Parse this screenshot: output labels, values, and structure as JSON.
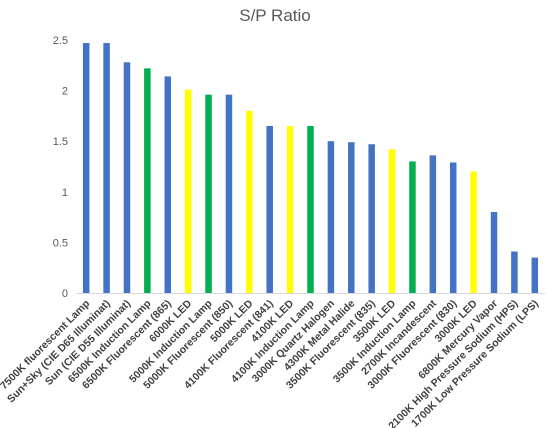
{
  "chart_data": {
    "type": "bar",
    "title": "S/P Ratio",
    "xlabel": "",
    "ylabel": "",
    "ylim": [
      0,
      2.5
    ],
    "yticks": [
      "0",
      "0.5",
      "1",
      "1.5",
      "2",
      "2.5"
    ],
    "grid": false,
    "legend": "none",
    "colors": {
      "blue": "#4472c4",
      "green": "#00b050",
      "yellow": "#ffff00"
    },
    "categories": [
      "7500K fluorescent Lamp",
      "Sun+Sky (CIE D65 Illuminat)",
      "Sun (CIE D55 Illuminat)",
      "6500K Induction Lamp",
      "6500K Fluorescent (865)",
      "6000K LED",
      "5000K Induction Lamp",
      "5000K Fluorescent (850)",
      "5000K LED",
      "4100K Fluorescent (841)",
      "4100K LED",
      "4100K Induction Lamp",
      "3000K Quartz Halogen",
      "4300K Metal Halide",
      "3500K Fluorescent (835)",
      "3500K LED",
      "3500K Induction Lamp",
      "2700K Incandescent",
      "3000K Fluorescent (830)",
      "3000K LED",
      "6800K Mercury Vapor",
      "2100K High Pressure Sodium (HPS)",
      "1700K Low Pressure Sodium (LPS)"
    ],
    "values": [
      2.47,
      2.47,
      2.28,
      2.22,
      2.14,
      2.01,
      1.96,
      1.96,
      1.8,
      1.65,
      1.65,
      1.65,
      1.5,
      1.49,
      1.47,
      1.42,
      1.3,
      1.36,
      1.29,
      1.2,
      0.8,
      0.41,
      0.35
    ],
    "bar_colors": [
      "blue",
      "blue",
      "blue",
      "green",
      "blue",
      "yellow",
      "green",
      "blue",
      "yellow",
      "blue",
      "yellow",
      "green",
      "blue",
      "blue",
      "blue",
      "yellow",
      "green",
      "blue",
      "blue",
      "yellow",
      "blue",
      "blue",
      "blue"
    ]
  }
}
